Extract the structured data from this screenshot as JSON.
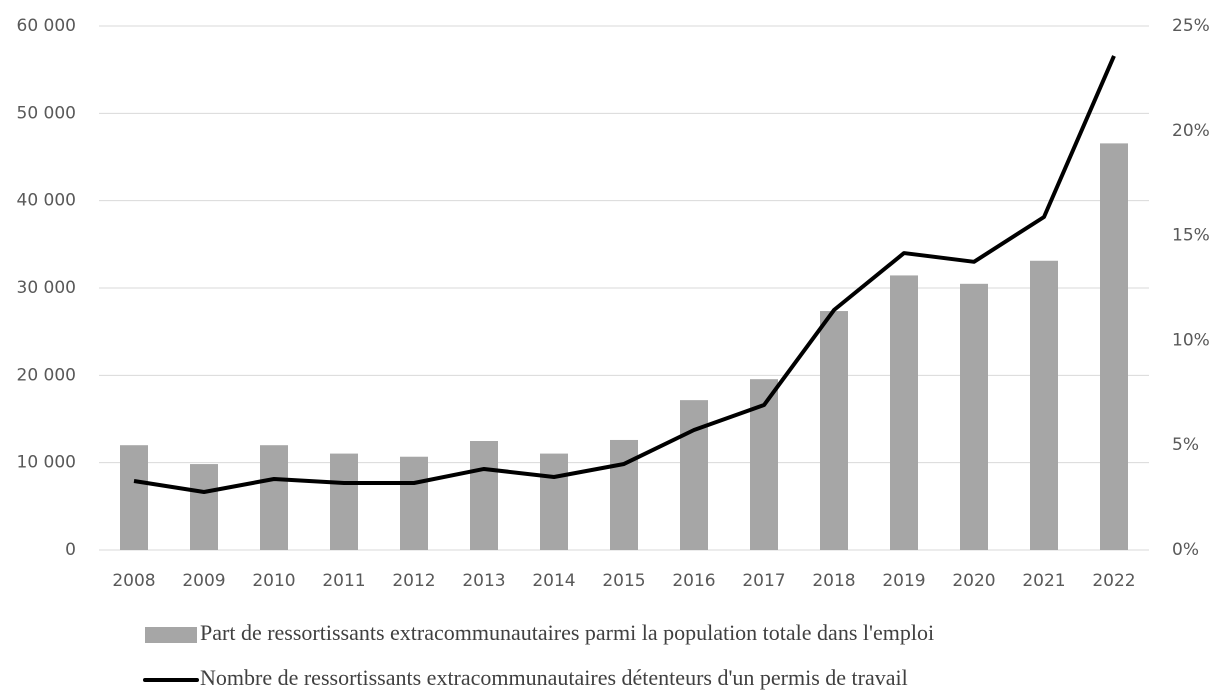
{
  "chart_data": {
    "type": "bar_line",
    "categories": [
      "2008",
      "2009",
      "2010",
      "2011",
      "2012",
      "2013",
      "2014",
      "2015",
      "2016",
      "2017",
      "2018",
      "2019",
      "2020",
      "2021",
      "2022"
    ],
    "series": [
      {
        "name": "Part de ressortissants extracommunautaires parmi la population totale dans l'emploi",
        "type": "bar",
        "axis": "y2",
        "color": "#a6a6a6",
        "values": [
          5.0,
          4.1,
          5.0,
          4.6,
          4.45,
          5.2,
          4.6,
          5.25,
          7.15,
          8.15,
          11.4,
          13.1,
          12.7,
          13.8,
          19.4
        ]
      },
      {
        "name": "Nombre de ressortissants extracommunautaires détenteurs d'un permis de travail",
        "type": "line",
        "color": "#000000",
        "values": [
          7900,
          6640,
          8130,
          7670,
          7670,
          9280,
          8360,
          9850,
          13740,
          16600,
          27480,
          34000,
          33000,
          38130,
          56570
        ]
      }
    ],
    "ylim": [
      0,
      60000
    ],
    "yticks": [
      0,
      {
        "value": 10000,
        "label": "10 000"
      },
      {
        "value": 20000,
        "label": "20 000"
      },
      {
        "value": 30000,
        "label": "30 000"
      },
      {
        "value": 40000,
        "label": "40 000"
      },
      {
        "value": 50000,
        "label": "50 000"
      },
      {
        "value": 60000,
        "label": "60 000"
      }
    ],
    "y2lim": [
      0,
      25
    ],
    "y2ticks": [
      {
        "value": 0,
        "label": "0%"
      },
      {
        "value": 5,
        "label": "5%"
      },
      {
        "value": 10,
        "label": "10%"
      },
      {
        "value": 15,
        "label": "15%"
      },
      {
        "value": 20,
        "label": "20%"
      },
      {
        "value": 25,
        "label": "25%"
      }
    ],
    "grid": true,
    "legend": "bottom"
  }
}
